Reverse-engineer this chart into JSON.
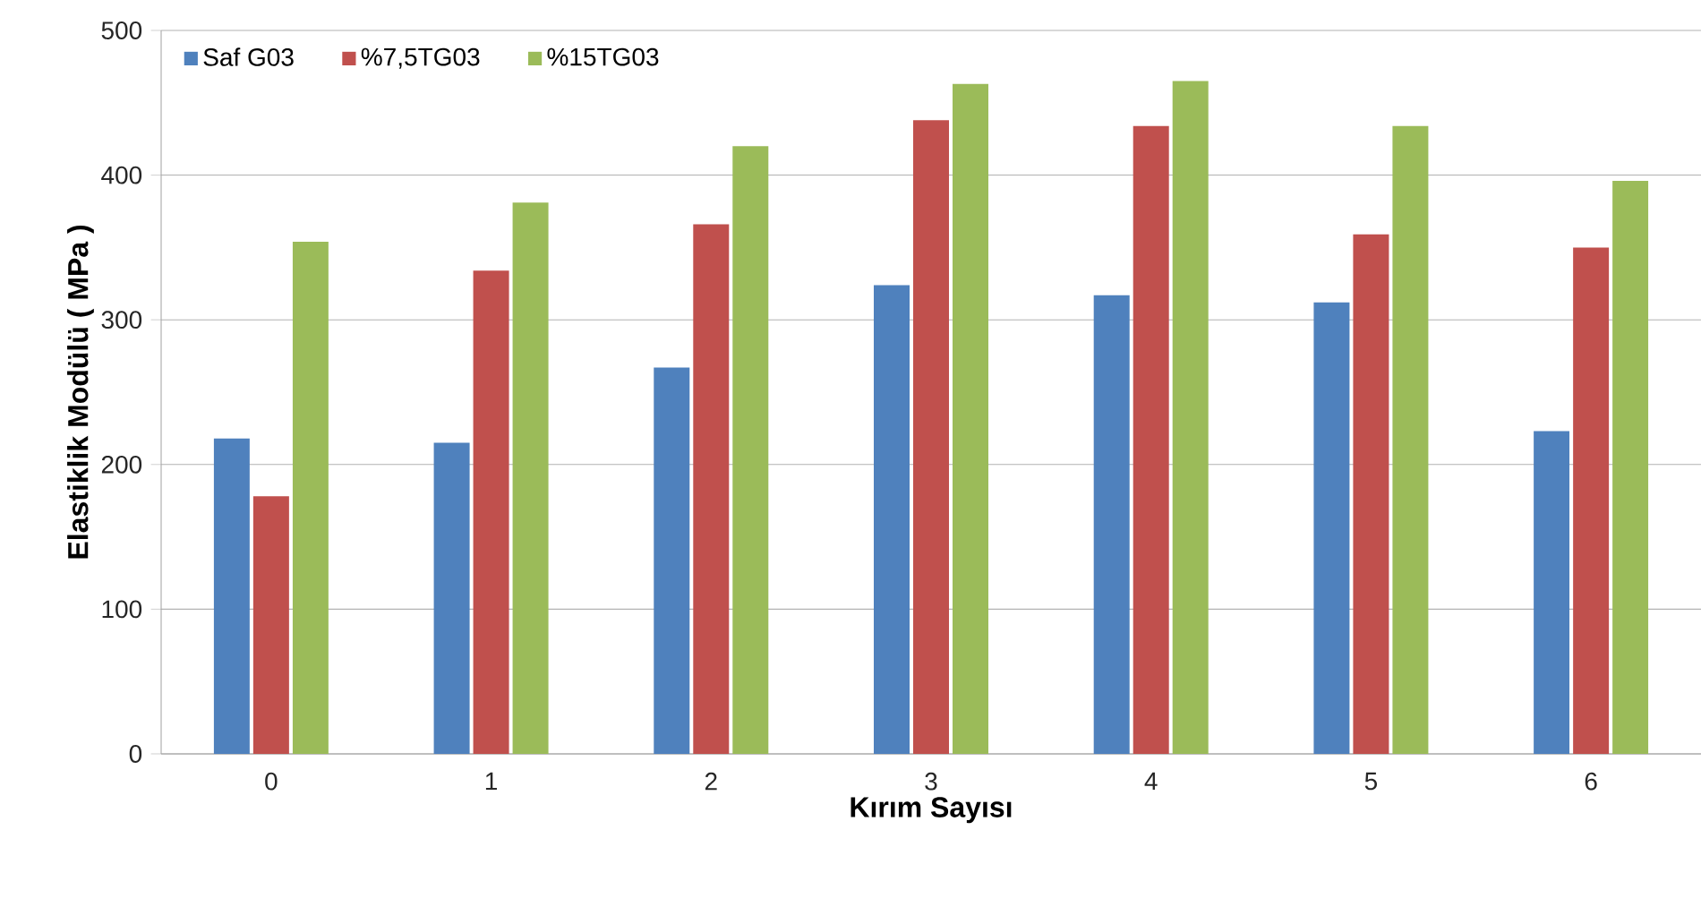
{
  "chart_data": {
    "type": "bar",
    "xlabel": "Kırım Sayısı",
    "ylabel": "Elastiklik Modülü ( MPa )",
    "categories": [
      "0",
      "1",
      "2",
      "3",
      "4",
      "5",
      "6"
    ],
    "series": [
      {
        "name": "Saf G03",
        "color": "#4f81bd",
        "values": [
          218,
          215,
          267,
          324,
          317,
          312,
          223
        ]
      },
      {
        "name": "%7,5TG03",
        "color": "#c0504d",
        "values": [
          178,
          334,
          366,
          438,
          434,
          359,
          350
        ]
      },
      {
        "name": "%15TG03",
        "color": "#9bbb59",
        "values": [
          354,
          381,
          420,
          463,
          465,
          434,
          396
        ]
      }
    ],
    "ylim": [
      0,
      500
    ],
    "yticks": [
      0,
      100,
      200,
      300,
      400,
      500
    ],
    "grid": "y",
    "legend": "top left"
  }
}
